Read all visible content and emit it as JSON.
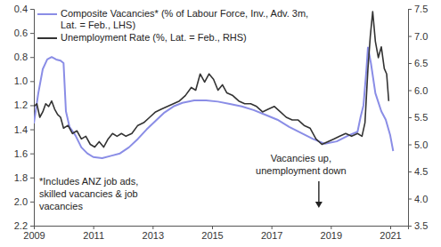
{
  "chart_data": {
    "type": "line",
    "series": [
      {
        "name": "Composite Vacancies* (% of Labour Force, Inv., Adv. 3m, Lat. = Feb., LHS)",
        "color": "#8a8de6",
        "x": [
          2009.0,
          2009.15,
          2009.3,
          2009.45,
          2009.6,
          2009.75,
          2009.9,
          2010.0,
          2010.08,
          2010.2,
          2010.4,
          2010.6,
          2010.8,
          2011.0,
          2011.3,
          2011.6,
          2011.9,
          2012.2,
          2012.5,
          2012.8,
          2013.1,
          2013.4,
          2013.7,
          2014.0,
          2014.4,
          2014.8,
          2015.2,
          2015.6,
          2016.0,
          2016.4,
          2016.8,
          2017.2,
          2017.6,
          2018.0,
          2018.4,
          2018.8,
          2019.2,
          2019.6,
          2019.9,
          2020.0,
          2020.1,
          2020.2,
          2020.25,
          2020.35,
          2020.5,
          2020.7,
          2020.85,
          2021.0,
          2021.1
        ],
        "values": [
          1.35,
          1.1,
          0.9,
          0.82,
          0.8,
          0.82,
          0.83,
          0.85,
          1.25,
          1.38,
          1.45,
          1.55,
          1.6,
          1.63,
          1.64,
          1.62,
          1.6,
          1.55,
          1.48,
          1.4,
          1.33,
          1.26,
          1.21,
          1.18,
          1.16,
          1.16,
          1.17,
          1.19,
          1.21,
          1.24,
          1.28,
          1.32,
          1.38,
          1.43,
          1.48,
          1.52,
          1.5,
          1.45,
          1.42,
          1.3,
          1.2,
          0.9,
          0.72,
          0.85,
          1.1,
          1.25,
          1.32,
          1.45,
          1.58
        ]
      },
      {
        "name": "Unemployment Rate (%, Lat. = Feb., RHS)",
        "color": "#333333",
        "axis": "y2",
        "x": [
          2009.0,
          2009.1,
          2009.2,
          2009.3,
          2009.4,
          2009.5,
          2009.6,
          2009.7,
          2009.8,
          2009.9,
          2010.0,
          2010.15,
          2010.3,
          2010.45,
          2010.6,
          2010.75,
          2010.9,
          2011.05,
          2011.2,
          2011.35,
          2011.5,
          2011.65,
          2011.8,
          2011.95,
          2012.1,
          2012.3,
          2012.5,
          2012.7,
          2012.9,
          2013.1,
          2013.3,
          2013.5,
          2013.7,
          2013.9,
          2014.1,
          2014.3,
          2014.45,
          2014.6,
          2014.75,
          2014.9,
          2015.05,
          2015.2,
          2015.35,
          2015.5,
          2015.7,
          2015.9,
          2016.1,
          2016.3,
          2016.5,
          2016.7,
          2016.9,
          2017.1,
          2017.3,
          2017.5,
          2017.7,
          2017.9,
          2018.1,
          2018.3,
          2018.5,
          2018.7,
          2018.9,
          2019.1,
          2019.3,
          2019.5,
          2019.7,
          2019.9,
          2020.05,
          2020.15,
          2020.25,
          2020.33,
          2020.41,
          2020.5,
          2020.6,
          2020.7,
          2020.8,
          2020.88,
          2020.95
        ],
        "values": [
          5.7,
          5.75,
          5.5,
          5.6,
          5.75,
          5.7,
          5.8,
          5.65,
          5.55,
          5.5,
          5.3,
          5.35,
          5.2,
          5.25,
          5.1,
          5.15,
          5.0,
          4.95,
          5.05,
          4.95,
          5.1,
          5.2,
          5.15,
          5.2,
          5.15,
          5.2,
          5.35,
          5.4,
          5.5,
          5.6,
          5.65,
          5.7,
          5.75,
          5.8,
          5.9,
          6.05,
          6.0,
          6.3,
          6.15,
          6.3,
          6.2,
          6.0,
          6.1,
          5.95,
          5.9,
          5.8,
          5.75,
          5.75,
          5.7,
          5.6,
          5.65,
          5.7,
          5.6,
          5.5,
          5.45,
          5.45,
          5.35,
          5.3,
          5.1,
          5.0,
          5.05,
          5.1,
          5.15,
          5.2,
          5.15,
          5.2,
          5.15,
          5.4,
          6.4,
          7.0,
          7.45,
          6.9,
          6.6,
          6.8,
          6.4,
          6.3,
          5.8
        ]
      }
    ],
    "xlim": [
      2009,
      2021.6
    ],
    "xticks": [
      2009,
      2011,
      2013,
      2015,
      2017,
      2019,
      2021
    ],
    "ylim": [
      2.2,
      0.4
    ],
    "yticks": [
      0.4,
      0.6,
      0.8,
      {
        "value": 1,
        "label": "1.0"
      },
      1.2,
      1.4,
      1.6,
      1.8,
      {
        "value": 2,
        "label": "2.0"
      },
      2.2
    ],
    "y2lim": [
      3.5,
      7.5
    ],
    "y2ticks": [
      3.5,
      {
        "value": 4,
        "label": "4.0"
      },
      4.5,
      {
        "value": 5,
        "label": "5.0"
      },
      5.5,
      {
        "value": 6,
        "label": "6.0"
      },
      6.5,
      {
        "value": 7,
        "label": "7.0"
      },
      7.5
    ],
    "grid": false,
    "legend": "upper left",
    "annotations": [
      "*Includes ANZ job ads,\nskilled vacancies & job\nvacancies",
      "Vacancies up,\nunemployment down"
    ]
  }
}
